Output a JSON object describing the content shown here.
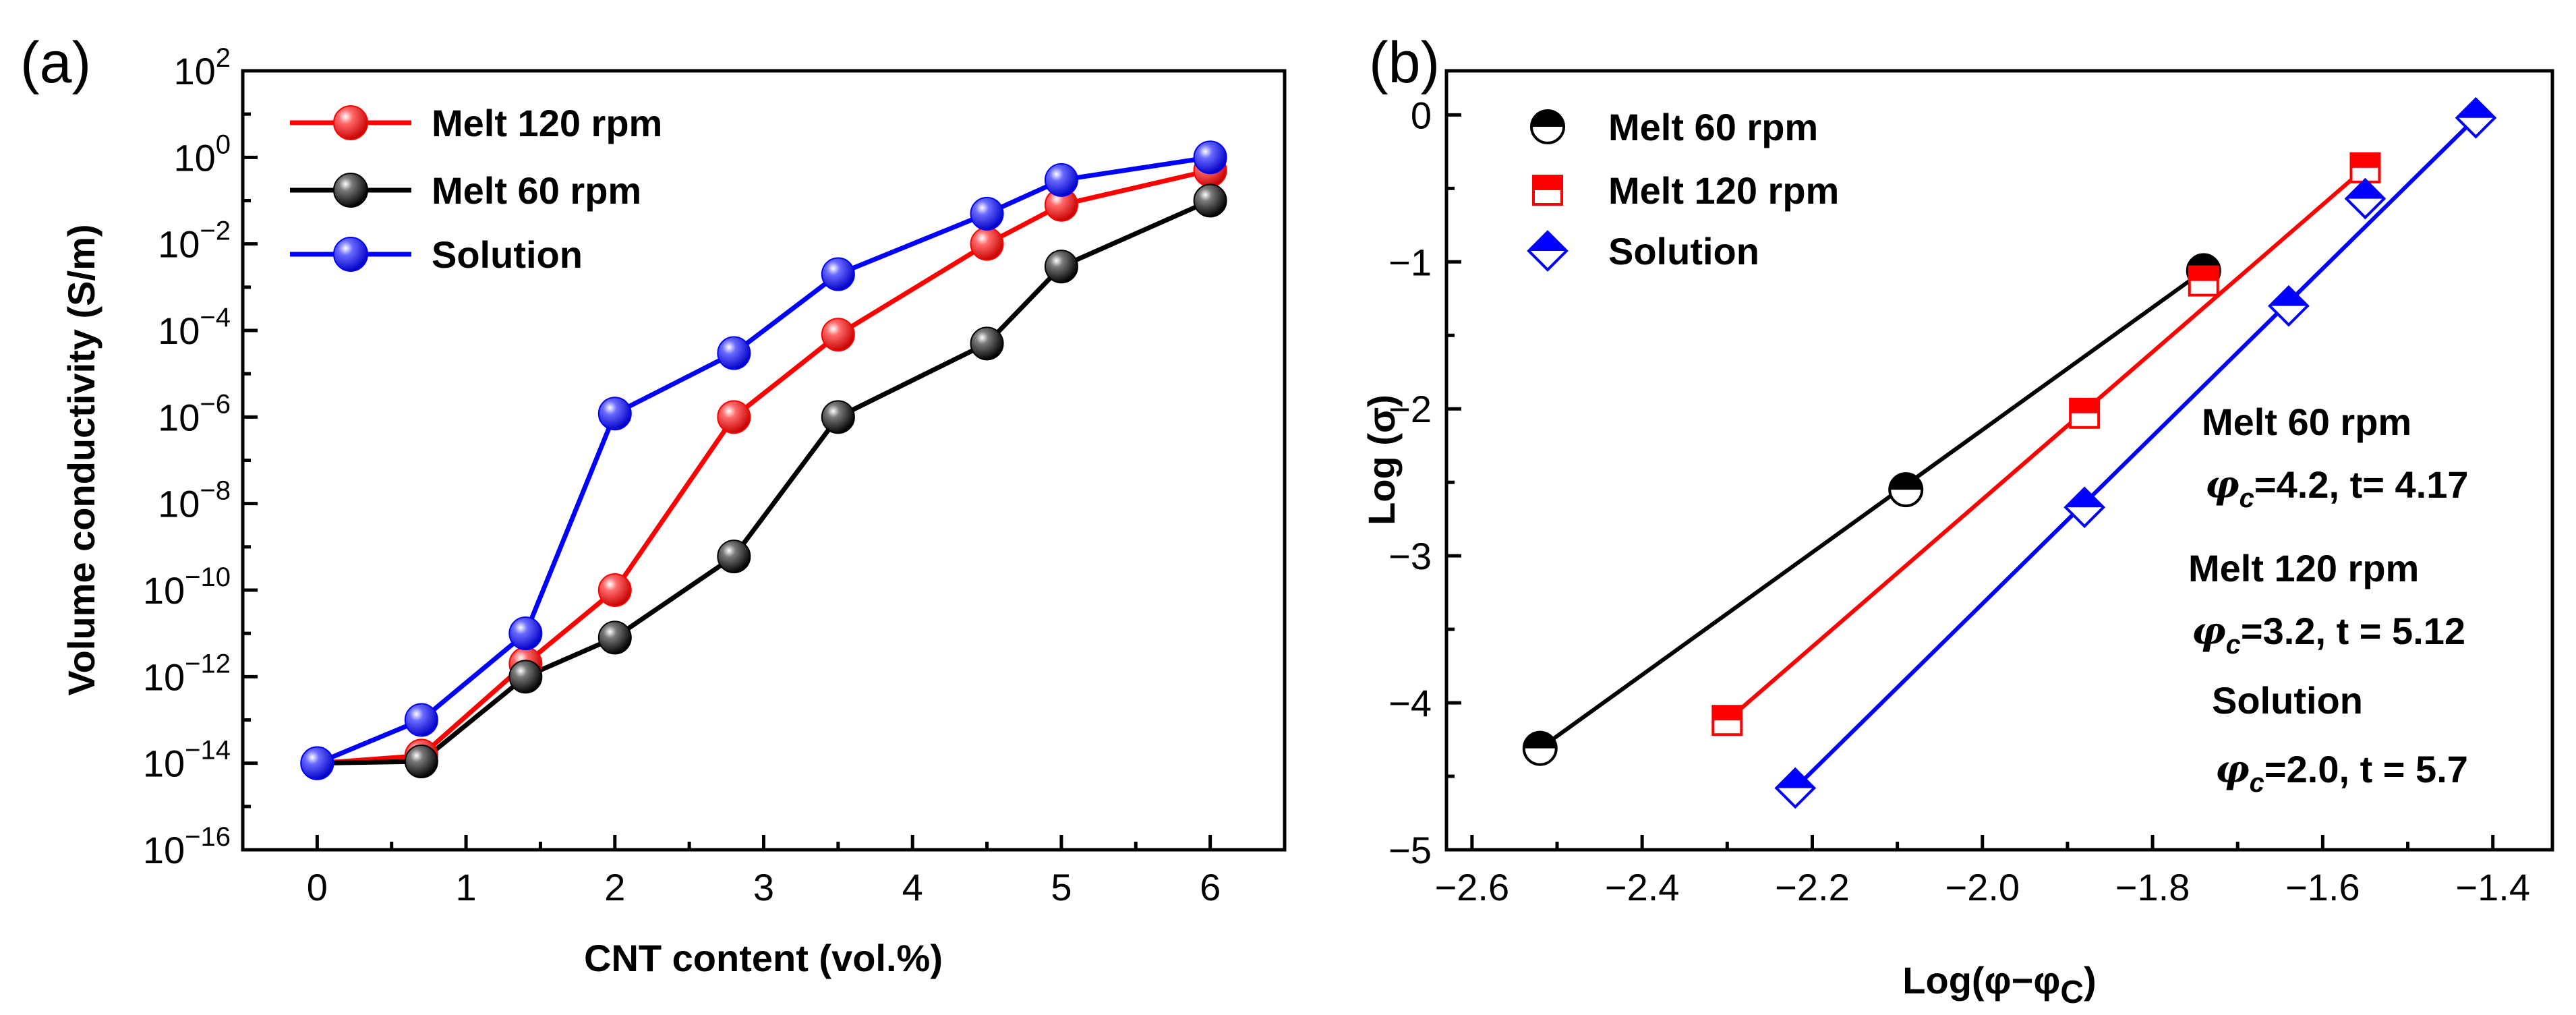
{
  "chart_data": [
    {
      "type": "line",
      "panel_label": "(a)",
      "title": "",
      "xlabel": "CNT content (vol.%)",
      "ylabel": "Volume conductivity (S/m)",
      "yscale": "log",
      "xlim": [
        -0.5,
        6.5
      ],
      "ylim_exponent": [
        -16,
        2
      ],
      "xticks": [
        0,
        1,
        2,
        3,
        4,
        5,
        6
      ],
      "xtick_labels": [
        "0",
        "1",
        "2",
        "3",
        "4",
        "5",
        "6"
      ],
      "ytick_exponents": [
        -16,
        -14,
        -12,
        -10,
        -8,
        -6,
        -4,
        -2,
        0,
        2
      ],
      "ytick_base": "10",
      "ytick_sup": [
        "−16",
        "−14",
        "−12",
        "−10",
        "−8",
        "−6",
        "−4",
        "−2",
        "0",
        "2"
      ],
      "legend_position": "top-left",
      "series": [
        {
          "name": "Melt 120 rpm",
          "color": "#ff0000",
          "x": [
            0,
            0.7,
            1.4,
            2.0,
            2.8,
            3.5,
            4.5,
            5.0,
            6.0
          ],
          "values": [
            1e-14,
            1.5e-14,
            2e-12,
            1e-10,
            1e-06,
            8e-05,
            0.01,
            0.08,
            0.5
          ]
        },
        {
          "name": "Melt 60 rpm",
          "color": "#000000",
          "x": [
            0,
            0.7,
            1.4,
            2.0,
            2.8,
            3.5,
            4.5,
            5.0,
            6.0
          ],
          "values": [
            1e-14,
            1.1e-14,
            1e-12,
            8e-12,
            6e-10,
            1e-06,
            5e-05,
            0.003,
            0.1
          ]
        },
        {
          "name": "Solution",
          "color": "#0000ff",
          "x": [
            0,
            0.7,
            1.4,
            2.0,
            2.8,
            3.5,
            4.5,
            5.0,
            6.0
          ],
          "values": [
            1e-14,
            1e-13,
            1e-11,
            1.2e-06,
            3e-05,
            0.002,
            0.05,
            0.3,
            1.0
          ]
        }
      ]
    },
    {
      "type": "scatter",
      "panel_label": "(b)",
      "title": "",
      "xlabel_prefix": "Log(φ−φ",
      "xlabel_sub": "C",
      "xlabel_suffix": ")",
      "ylabel": "Log (σ)",
      "xlim": [
        -2.63,
        -1.33
      ],
      "ylim": [
        -5,
        0.3
      ],
      "xticks": [
        -2.6,
        -2.4,
        -2.2,
        -2.0,
        -1.8,
        -1.6,
        -1.4
      ],
      "xtick_labels": [
        "−2.6",
        "−2.4",
        "−2.2",
        "−2.0",
        "−1.8",
        "−1.6",
        "−1.4"
      ],
      "yticks": [
        -5,
        -4,
        -3,
        -2,
        -1,
        0
      ],
      "ytick_labels": [
        "−5",
        "−4",
        "−3",
        "−2",
        "−1",
        "0"
      ],
      "legend_position": "top-left",
      "series": [
        {
          "name": "Melt 60 rpm",
          "color": "#000000",
          "marker": "half-circle",
          "x": [
            -2.52,
            -2.09,
            -1.74
          ],
          "y": [
            -4.31,
            -2.55,
            -1.06
          ],
          "fit": {
            "x": [
              -2.52,
              -1.74
            ],
            "y": [
              -4.31,
              -1.06
            ]
          }
        },
        {
          "name": "Melt 120 rpm",
          "color": "#ff0000",
          "marker": "half-square",
          "x": [
            -2.3,
            -1.88,
            -1.74,
            -1.55
          ],
          "y": [
            -4.12,
            -2.03,
            -1.13,
            -0.36
          ],
          "fit": {
            "x": [
              -2.3,
              -1.55
            ],
            "y": [
              -4.12,
              -0.36
            ]
          }
        },
        {
          "name": "Solution",
          "color": "#0000ff",
          "marker": "half-diamond",
          "x": [
            -2.22,
            -1.88,
            -1.64,
            -1.55,
            -1.42
          ],
          "y": [
            -4.58,
            -2.67,
            -1.3,
            -0.57,
            -0.02
          ],
          "fit": {
            "x": [
              -2.22,
              -1.42
            ],
            "y": [
              -4.58,
              -0.02
            ]
          }
        }
      ],
      "annotations": [
        {
          "title": "Melt 60 rpm",
          "param_symbol": "φ",
          "param_sub": "c",
          "param_text": "=4.2, t= 4.17"
        },
        {
          "title": "Melt 120 rpm",
          "param_symbol": "φ",
          "param_sub": "c",
          "param_text": "=3.2, t = 5.12"
        },
        {
          "title": "Solution",
          "param_symbol": "φ",
          "param_sub": "c",
          "param_text": "=2.0, t = 5.7"
        }
      ]
    }
  ]
}
